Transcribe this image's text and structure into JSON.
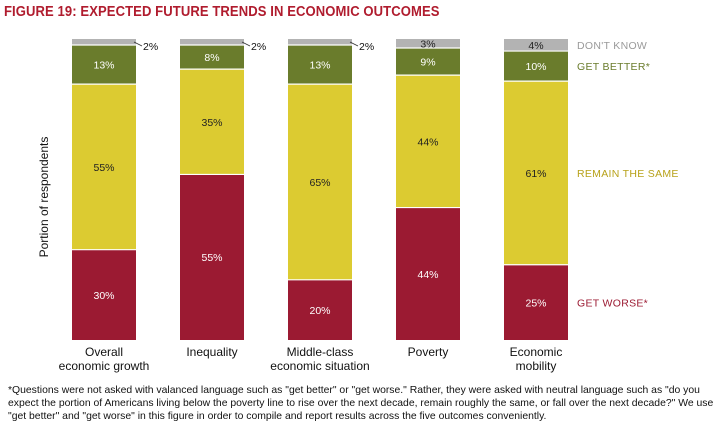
{
  "title": "FIGURE 19: EXPECTED FUTURE TRENDS IN ECONOMIC OUTCOMES",
  "footnote": "*Questions were not asked with valanced language such as \"get better\" or \"get worse.\"  Rather, they were asked with neutral language such as \"do you expect the portion of Americans living below the poverty line to rise over the next decade, remain roughly the same, or fall over the next decade?\"  We use \"get better\" and \"get worse\" in this figure in order to compile and report results across the five outcomes conveniently.",
  "chart_data": {
    "type": "bar",
    "stacked": true,
    "ylabel": "Portion of respondents",
    "ylim": [
      0,
      100
    ],
    "grid": false,
    "legend_position": "right",
    "categories": [
      [
        "Overall",
        "economic growth"
      ],
      [
        "Inequality"
      ],
      [
        "Middle-class",
        "economic situation"
      ],
      [
        "Poverty"
      ],
      [
        "Economic",
        "mobility"
      ]
    ],
    "series": [
      {
        "name": "GET WORSE*",
        "color": "#9b1a32",
        "label_color": "#9b1a32",
        "values": [
          30,
          55,
          20,
          44,
          25
        ]
      },
      {
        "name": "REMAIN THE SAME",
        "color": "#dccb31",
        "label_color": "#b8a21a",
        "values": [
          55,
          35,
          65,
          44,
          61
        ]
      },
      {
        "name": "GET BETTER*",
        "color": "#6a7c2c",
        "label_color": "#6a7c2c",
        "values": [
          13,
          8,
          13,
          9,
          10
        ]
      },
      {
        "name": "DON'T KNOW",
        "color": "#b3b3b3",
        "label_color": "#9a9a9a",
        "values": [
          2,
          2,
          2,
          3,
          4
        ]
      }
    ]
  }
}
